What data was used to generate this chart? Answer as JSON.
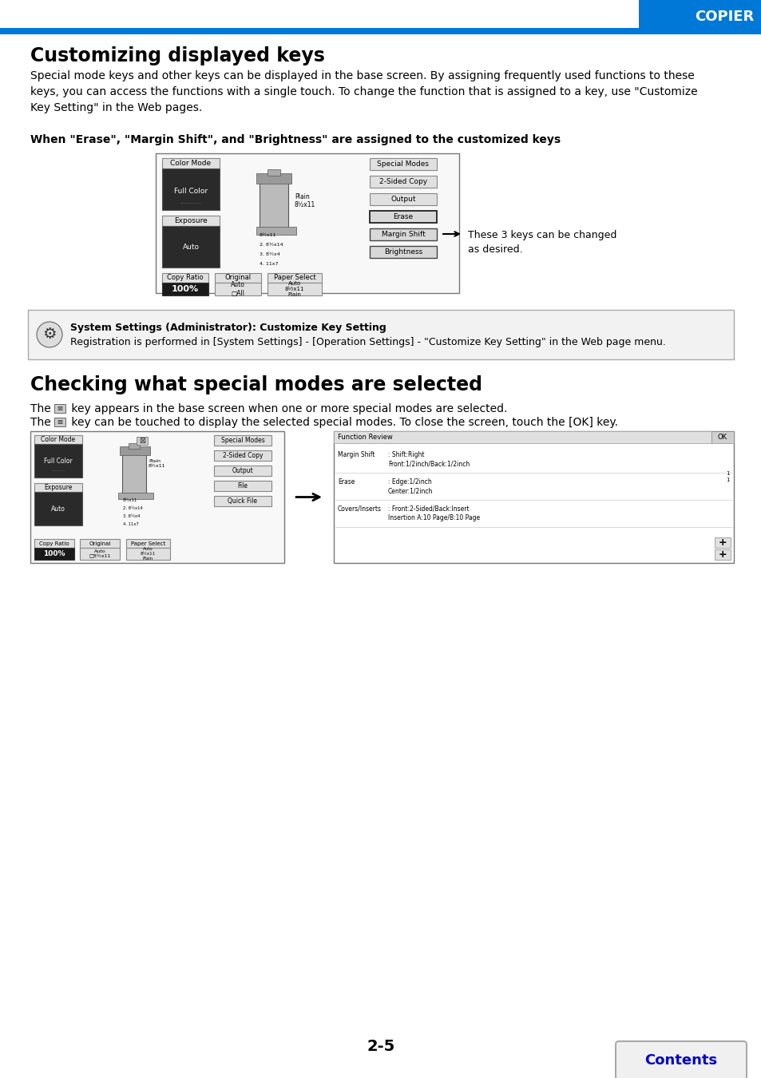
{
  "page_bg": "#ffffff",
  "header_bar_color": "#0078d7",
  "header_text": "COPIER",
  "header_box_color": "#0078d7",
  "title1": "Customizing displayed keys",
  "body1": "Special mode keys and other keys can be displayed in the base screen. By assigning frequently used functions to these\nkeys, you can access the functions with a single touch. To change the function that is assigned to a key, use \"Customize\nKey Setting\" in the Web pages.",
  "subtitle1": "When \"Erase\", \"Margin Shift\", and \"Brightness\" are assigned to the customized keys",
  "annotation1": "These 3 keys can be changed\nas desired.",
  "info_box_text": "System Settings (Administrator): Customize Key Setting\nRegistration is performed in [System Settings] - [Operation Settings] - \"Customize Key Setting\" in the Web page menu.",
  "title2": "Checking what special modes are selected",
  "page_number": "2-5",
  "contents_btn_text": "Contents",
  "contents_btn_color": "#0000cc",
  "blue_line_color": "#0078d7"
}
